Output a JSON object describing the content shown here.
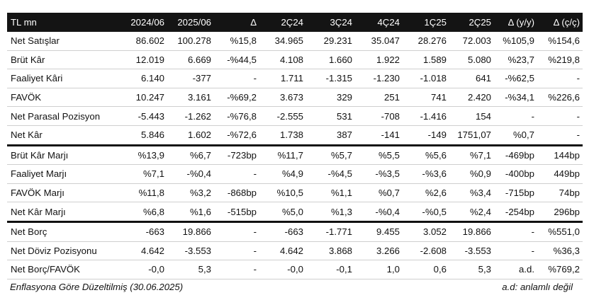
{
  "table": {
    "headers": [
      "TL mn",
      "2024/06",
      "2025/06",
      "Δ",
      "2Ç24",
      "3Ç24",
      "4Ç24",
      "1Ç25",
      "2Ç25",
      "Δ (y/y)",
      "Δ (ç/ç)"
    ],
    "rows": [
      [
        "Net Satışlar",
        "86.602",
        "100.278",
        "%15,8",
        "34.965",
        "29.231",
        "35.047",
        "28.276",
        "72.003",
        "%105,9",
        "%154,6"
      ],
      [
        "Brüt Kâr",
        "12.019",
        "6.669",
        "-%44,5",
        "4.108",
        "1.660",
        "1.922",
        "1.589",
        "5.080",
        "%23,7",
        "%219,8"
      ],
      [
        "Faaliyet Kâri",
        "6.140",
        "-377",
        "-",
        "1.711",
        "-1.315",
        "-1.230",
        "-1.018",
        "641",
        "-%62,5",
        "-"
      ],
      [
        "FAVÖK",
        "10.247",
        "3.161",
        "-%69,2",
        "3.673",
        "329",
        "251",
        "741",
        "2.420",
        "-%34,1",
        "%226,6"
      ],
      [
        "Net Parasal Pozisyon",
        "-5.443",
        "-1.262",
        "-%76,8",
        "-2.555",
        "531",
        "-708",
        "-1.416",
        "154",
        "-",
        "-"
      ],
      [
        "Net Kâr",
        "5.846",
        "1.602",
        "-%72,6",
        "1.738",
        "387",
        "-141",
        "-149",
        "1751,07",
        "%0,7",
        "-"
      ],
      [
        "Brüt Kâr Marjı",
        "%13,9",
        "%6,7",
        "-723bp",
        "%11,7",
        "%5,7",
        "%5,5",
        "%5,6",
        "%7,1",
        "-469bp",
        "144bp"
      ],
      [
        "Faaliyet Marjı",
        "%7,1",
        "-%0,4",
        "-",
        "%4,9",
        "-%4,5",
        "-%3,5",
        "-%3,6",
        "%0,9",
        "-400bp",
        "449bp"
      ],
      [
        "FAVÖK Marjı",
        "%11,8",
        "%3,2",
        "-868bp",
        "%10,5",
        "%1,1",
        "%0,7",
        "%2,6",
        "%3,4",
        "-715bp",
        "74bp"
      ],
      [
        "Net Kâr Marjı",
        "%6,8",
        "%1,6",
        "-515bp",
        "%5,0",
        "%1,3",
        "-%0,4",
        "-%0,5",
        "%2,4",
        "-254bp",
        "296bp"
      ],
      [
        "Net Borç",
        "-663",
        "19.866",
        "-",
        "-663",
        "-1.771",
        "9.455",
        "3.052",
        "19.866",
        "-",
        "%551,0"
      ],
      [
        "Net Döviz Pozisyonu",
        "4.642",
        "-3.553",
        "-",
        "4.642",
        "3.868",
        "3.266",
        "-2.608",
        "-3.553",
        "-",
        "%36,3"
      ],
      [
        "Net Borç/FAVÖK",
        "-0,0",
        "5,3",
        "-",
        "-0,0",
        "-0,1",
        "1,0",
        "0,6",
        "5,3",
        "a.d.",
        "%769,2"
      ]
    ]
  },
  "footer": {
    "left_note": "Enflasyona Göre Düzeltilmiş (30.06.2025)",
    "right_note": "a.d: anlamlı değil"
  }
}
